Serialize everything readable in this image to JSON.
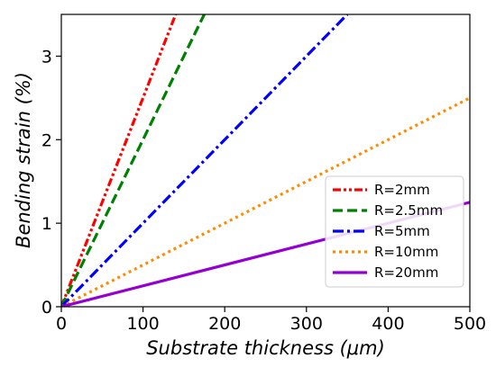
{
  "chart_data": {
    "type": "line",
    "xlabel": "Substrate thickness (μm)",
    "ylabel": "Bending strain (%)",
    "xlim": [
      0,
      500
    ],
    "ylim": [
      0,
      3.5
    ],
    "xticks": [
      0,
      100,
      200,
      300,
      400,
      500
    ],
    "yticks": [
      0,
      1,
      2,
      3
    ],
    "grid": false,
    "legend_position": "lower-right",
    "series": [
      {
        "name": "R=2mm",
        "x": [
          0,
          140
        ],
        "y": [
          0,
          3.5
        ],
        "color": "#ff0000",
        "dash": "dash-dot-dot"
      },
      {
        "name": "R=2.5mm",
        "x": [
          0,
          175
        ],
        "y": [
          0,
          3.5
        ],
        "color": "#008000",
        "dash": "dashed"
      },
      {
        "name": "R=5mm",
        "x": [
          0,
          350
        ],
        "y": [
          0,
          3.5
        ],
        "color": "#0000ff",
        "dash": "dash-dot"
      },
      {
        "name": "R=10mm",
        "x": [
          0,
          500
        ],
        "y": [
          0,
          2.5
        ],
        "color": "#ff8c00",
        "dash": "dotted"
      },
      {
        "name": "R=20mm",
        "x": [
          0,
          500
        ],
        "y": [
          0,
          1.25
        ],
        "color": "#9400d3",
        "dash": "solid"
      }
    ]
  }
}
